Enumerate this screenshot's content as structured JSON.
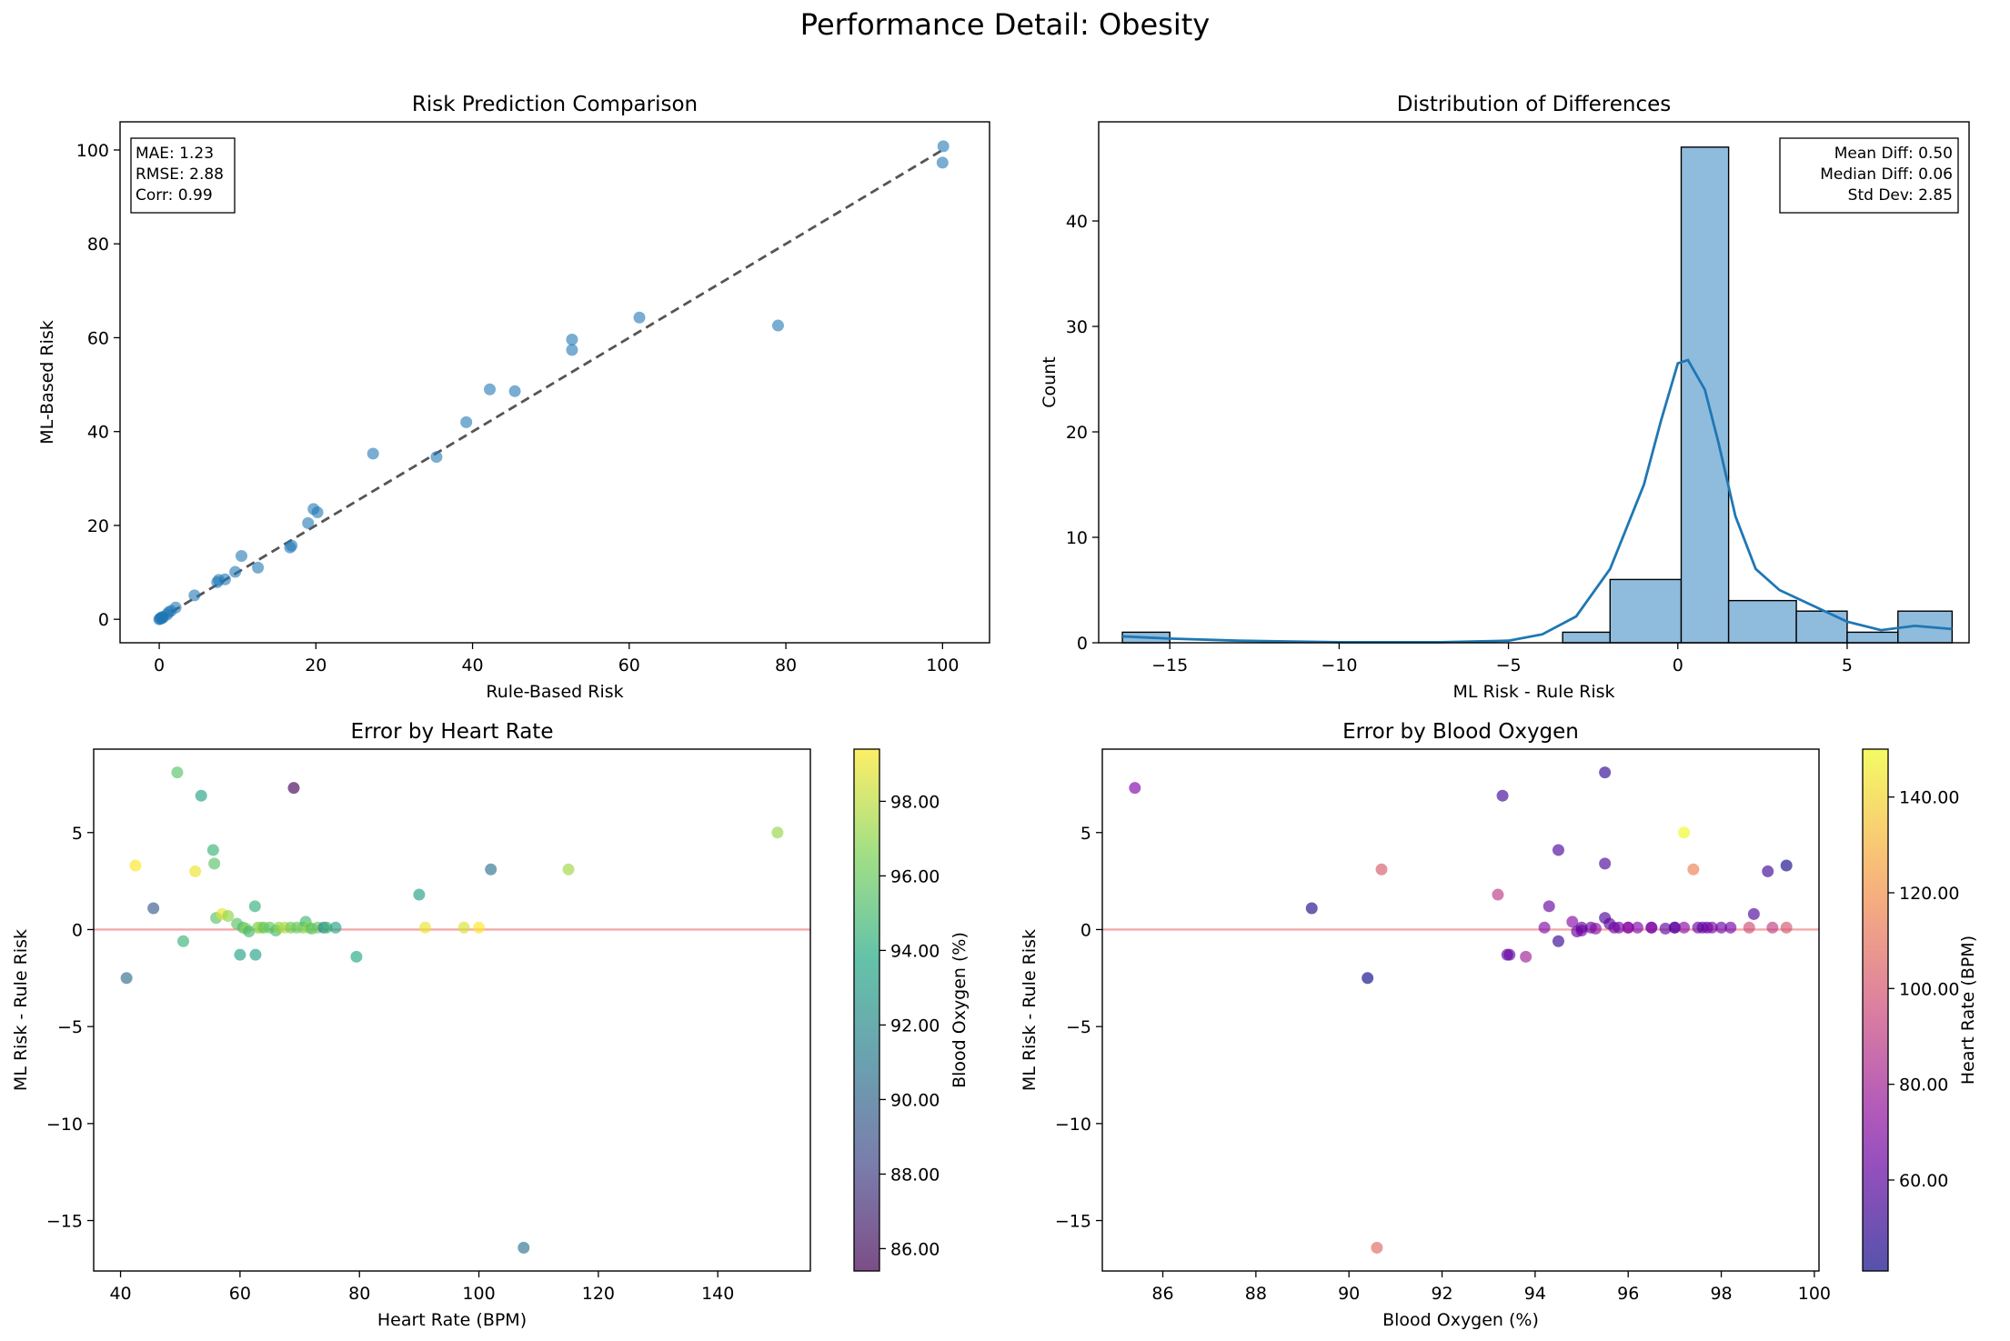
{
  "figure": {
    "title": "Performance Detail: Obesity"
  },
  "chart_data": [
    {
      "id": "comparison",
      "type": "scatter",
      "title": "Risk Prediction Comparison",
      "xlabel": "Rule-Based Risk",
      "ylabel": "ML-Based Risk",
      "xlim": [
        -5,
        106
      ],
      "ylim": [
        -5,
        106
      ],
      "xticks": [
        0,
        20,
        40,
        60,
        80,
        100
      ],
      "yticks": [
        0,
        20,
        40,
        60,
        80,
        100
      ],
      "color": "#1f77b4",
      "reference_line": {
        "from": [
          0,
          0
        ],
        "to": [
          100,
          100
        ],
        "style": "dashed",
        "color": "#555555"
      },
      "stats": [
        "MAE: 1.23",
        "RMSE: 2.88",
        "Corr: 0.99"
      ],
      "stats_position": "top-left",
      "points": [
        [
          0,
          0
        ],
        [
          0.1,
          0.1
        ],
        [
          0.2,
          0.3
        ],
        [
          0.3,
          0.2
        ],
        [
          0.4,
          0.5
        ],
        [
          0.5,
          0.4
        ],
        [
          1.0,
          1.0
        ],
        [
          1.2,
          1.5
        ],
        [
          1.5,
          1.8
        ],
        [
          2.1,
          2.5
        ],
        [
          4.5,
          5.1
        ],
        [
          7.4,
          7.9
        ],
        [
          7.6,
          8.4
        ],
        [
          8.4,
          8.5
        ],
        [
          9.7,
          10.1
        ],
        [
          10.5,
          13.5
        ],
        [
          12.6,
          11.0
        ],
        [
          16.7,
          15.3
        ],
        [
          16.9,
          15.7
        ],
        [
          19.0,
          20.5
        ],
        [
          19.7,
          23.5
        ],
        [
          20.2,
          22.8
        ],
        [
          27.3,
          35.3
        ],
        [
          35.4,
          34.6
        ],
        [
          39.2,
          42.0
        ],
        [
          42.2,
          49.0
        ],
        [
          45.4,
          48.6
        ],
        [
          52.7,
          57.4
        ],
        [
          52.7,
          59.6
        ],
        [
          61.3,
          64.3
        ],
        [
          79.0,
          62.6
        ],
        [
          100.1,
          100.8
        ],
        [
          100.0,
          97.3
        ]
      ]
    },
    {
      "id": "distribution",
      "type": "bar",
      "title": "Distribution of Differences",
      "xlabel": "ML Risk - Rule Risk",
      "ylabel": "Count",
      "xlim": [
        -17.1,
        8.6
      ],
      "ylim": [
        0,
        49.4
      ],
      "xticks": [
        -15,
        -10,
        -5,
        0,
        5
      ],
      "xticklabels": [
        "−15",
        "−10",
        "−5",
        "0",
        "5"
      ],
      "yticks": [
        0,
        10,
        20,
        30,
        40
      ],
      "bin_edges": [
        -16.4,
        -15.0,
        -13.6,
        -12.1,
        -10.7,
        -9.3,
        -7.9,
        -6.5,
        -5.1,
        -3.6,
        -2.2,
        -0.8,
        0.6,
        2.0,
        3.4,
        4.8,
        6.2,
        7.6
      ],
      "bin_edges_note": "",
      "bins": [
        {
          "x0": -16.4,
          "x1": -15.0,
          "count": 1
        },
        {
          "x0": -3.4,
          "x1": -2.0,
          "count": 1
        },
        {
          "x0": -2.0,
          "x1": 0.1,
          "count": 6
        },
        {
          "x0": 0.1,
          "x1": 1.5,
          "count": 47
        },
        {
          "x0": 1.5,
          "x1": 3.5,
          "count": 4
        },
        {
          "x0": 3.5,
          "x1": 5.0,
          "count": 3
        },
        {
          "x0": 5.0,
          "x1": 6.5,
          "count": 1
        },
        {
          "x0": 6.5,
          "x1": 8.1,
          "count": 3
        }
      ],
      "kde": [
        [
          -16.4,
          0.6
        ],
        [
          -15,
          0.4
        ],
        [
          -13,
          0.2
        ],
        [
          -10,
          0.05
        ],
        [
          -7,
          0.05
        ],
        [
          -5,
          0.2
        ],
        [
          -4,
          0.8
        ],
        [
          -3,
          2.5
        ],
        [
          -2,
          7
        ],
        [
          -1,
          15
        ],
        [
          -0.5,
          21
        ],
        [
          0,
          26.5
        ],
        [
          0.3,
          26.8
        ],
        [
          0.8,
          24
        ],
        [
          1.2,
          19
        ],
        [
          1.7,
          12
        ],
        [
          2.3,
          7
        ],
        [
          3,
          5
        ],
        [
          4,
          3.5
        ],
        [
          5,
          2
        ],
        [
          6,
          1.2
        ],
        [
          7,
          1.6
        ],
        [
          8.1,
          1.3
        ]
      ],
      "bar_color": "#8fbcdd",
      "line_color": "#1f77b4",
      "stats": [
        "Mean Diff: 0.50",
        "Median Diff: 0.06",
        "Std Dev: 2.85"
      ],
      "stats_position": "top-right"
    },
    {
      "id": "heart-rate",
      "type": "scatter",
      "title": "Error by Heart Rate",
      "xlabel": "Heart Rate (BPM)",
      "ylabel": "ML Risk - Rule Risk",
      "xlim": [
        35.5,
        155.5
      ],
      "ylim": [
        -17.6,
        9.3
      ],
      "xticks": [
        40,
        60,
        80,
        100,
        120,
        140
      ],
      "yticks": [
        -15,
        -10,
        -5,
        0,
        5
      ],
      "yticklabels": [
        "−15",
        "−10",
        "−5",
        "0",
        "5"
      ],
      "reference_y": 0,
      "reference_color": "#f4a9a8",
      "colorbar": {
        "label": "Blood Oxygen (%)",
        "min": 85.4,
        "max": 99.4,
        "ticks": [
          86,
          88,
          90,
          92,
          94,
          96,
          98
        ],
        "ticklabels": [
          "86.00",
          "88.00",
          "90.00",
          "92.00",
          "94.00",
          "96.00",
          "98.00"
        ],
        "colormap": "viridis"
      },
      "points": [
        [
          41,
          -2.5,
          90.4
        ],
        [
          42.5,
          3.3,
          99.4
        ],
        [
          45.5,
          1.1,
          89.2
        ],
        [
          49.5,
          8.1,
          95.5
        ],
        [
          50.5,
          -0.6,
          94.5
        ],
        [
          52.5,
          3.0,
          99.0
        ],
        [
          53.5,
          6.9,
          93.3
        ],
        [
          55.5,
          4.1,
          94.5
        ],
        [
          55.7,
          3.4,
          95.5
        ],
        [
          56.0,
          0.6,
          95.5
        ],
        [
          57.0,
          0.8,
          99.0
        ],
        [
          58.0,
          0.7,
          97.0
        ],
        [
          59.5,
          0.3,
          95.6
        ],
        [
          60,
          -1.3,
          93.4
        ],
        [
          60.5,
          0.1,
          95.0
        ],
        [
          61,
          0.05,
          96.8
        ],
        [
          61.5,
          -0.1,
          94.9
        ],
        [
          62.5,
          1.2,
          94.3
        ],
        [
          62.6,
          -1.3,
          93.4
        ],
        [
          63,
          0.1,
          96.5
        ],
        [
          63.5,
          0.1,
          97.5
        ],
        [
          64,
          0.1,
          95.7
        ],
        [
          65,
          0.1,
          95.8
        ],
        [
          66,
          -0.05,
          95.0
        ],
        [
          66.5,
          0.1,
          97.0
        ],
        [
          67.5,
          0.1,
          97.8
        ],
        [
          68.5,
          0.1,
          96.2
        ],
        [
          69,
          7.3,
          85.4
        ],
        [
          69.5,
          0.1,
          96.0
        ],
        [
          70.5,
          0.1,
          96.5
        ],
        [
          71,
          0.4,
          94.8
        ],
        [
          71.5,
          0.1,
          97.2
        ],
        [
          72,
          0.05,
          95.3
        ],
        [
          73,
          0.1,
          96.0
        ],
        [
          74,
          0.1,
          91.3
        ],
        [
          74.5,
          0.1,
          94.5
        ],
        [
          76,
          0.1,
          93.5
        ],
        [
          79.5,
          -1.4,
          93.8
        ],
        [
          90,
          1.8,
          93.2
        ],
        [
          91,
          0.1,
          99.0
        ],
        [
          97.5,
          0.1,
          98.6
        ],
        [
          100.0,
          0.1,
          99.4
        ],
        [
          102.0,
          3.1,
          90.7
        ],
        [
          107.5,
          -16.4,
          90.6
        ],
        [
          115,
          3.1,
          97.4
        ],
        [
          150,
          5.0,
          97.2
        ]
      ]
    },
    {
      "id": "blood-oxygen",
      "type": "scatter",
      "title": "Error by Blood Oxygen",
      "xlabel": "Blood Oxygen (%)",
      "ylabel": "ML Risk - Rule Risk",
      "xlim": [
        84.7,
        100.1
      ],
      "ylim": [
        -17.6,
        9.3
      ],
      "xticks": [
        86,
        88,
        90,
        92,
        94,
        96,
        98,
        100
      ],
      "yticks": [
        -15,
        -10,
        -5,
        0,
        5
      ],
      "yticklabels": [
        "−15",
        "−10",
        "−5",
        "0",
        "5"
      ],
      "reference_y": 0,
      "reference_color": "#f4a9a8",
      "colorbar": {
        "label": "Heart Rate (BPM)",
        "min": 41,
        "max": 150,
        "ticks": [
          60,
          80,
          100,
          120,
          140
        ],
        "ticklabels": [
          "60.00",
          "80.00",
          "100.00",
          "120.00",
          "140.00"
        ],
        "colormap": "plasma"
      },
      "points": [
        [
          85.4,
          7.3,
          69
        ],
        [
          89.2,
          1.1,
          45.5
        ],
        [
          90.4,
          -2.5,
          41
        ],
        [
          90.6,
          -16.4,
          107.5
        ],
        [
          90.7,
          3.1,
          102
        ],
        [
          93.2,
          1.8,
          90
        ],
        [
          93.3,
          6.9,
          53.5
        ],
        [
          93.4,
          -1.3,
          60
        ],
        [
          93.45,
          -1.3,
          62.6
        ],
        [
          93.8,
          -1.4,
          79.5
        ],
        [
          94.2,
          0.1,
          70
        ],
        [
          94.3,
          1.2,
          62.5
        ],
        [
          94.5,
          4.1,
          55.5
        ],
        [
          94.5,
          -0.6,
          50.5
        ],
        [
          94.8,
          0.4,
          71
        ],
        [
          94.9,
          -0.1,
          61.5
        ],
        [
          95.0,
          0.1,
          60.5
        ],
        [
          95.0,
          -0.05,
          66
        ],
        [
          95.2,
          0.1,
          62
        ],
        [
          95.3,
          0.05,
          72
        ],
        [
          95.5,
          8.1,
          49.5
        ],
        [
          95.5,
          3.4,
          55.7
        ],
        [
          95.5,
          0.6,
          56
        ],
        [
          95.6,
          0.3,
          59.5
        ],
        [
          95.7,
          0.1,
          64
        ],
        [
          95.8,
          0.1,
          65
        ],
        [
          96.0,
          0.1,
          69.5
        ],
        [
          96.0,
          0.1,
          73
        ],
        [
          96.2,
          0.1,
          68.5
        ],
        [
          96.5,
          0.1,
          63
        ],
        [
          96.5,
          0.1,
          70.5
        ],
        [
          96.8,
          0.05,
          61
        ],
        [
          97.0,
          0.1,
          66.5
        ],
        [
          97.0,
          0.1,
          58
        ],
        [
          97.2,
          5.0,
          150
        ],
        [
          97.2,
          0.1,
          71.5
        ],
        [
          97.4,
          3.1,
          115
        ],
        [
          97.5,
          0.1,
          63.5
        ],
        [
          97.6,
          0.1,
          60
        ],
        [
          97.7,
          0.1,
          62
        ],
        [
          97.8,
          0.1,
          67.5
        ],
        [
          98.0,
          0.1,
          64
        ],
        [
          98.2,
          0.1,
          66
        ],
        [
          98.6,
          0.1,
          97.5
        ],
        [
          98.7,
          0.8,
          57
        ],
        [
          99.0,
          3.0,
          52.5
        ],
        [
          99.1,
          0.1,
          91
        ],
        [
          99.4,
          3.3,
          42.5
        ],
        [
          99.4,
          0.1,
          100
        ]
      ]
    }
  ]
}
